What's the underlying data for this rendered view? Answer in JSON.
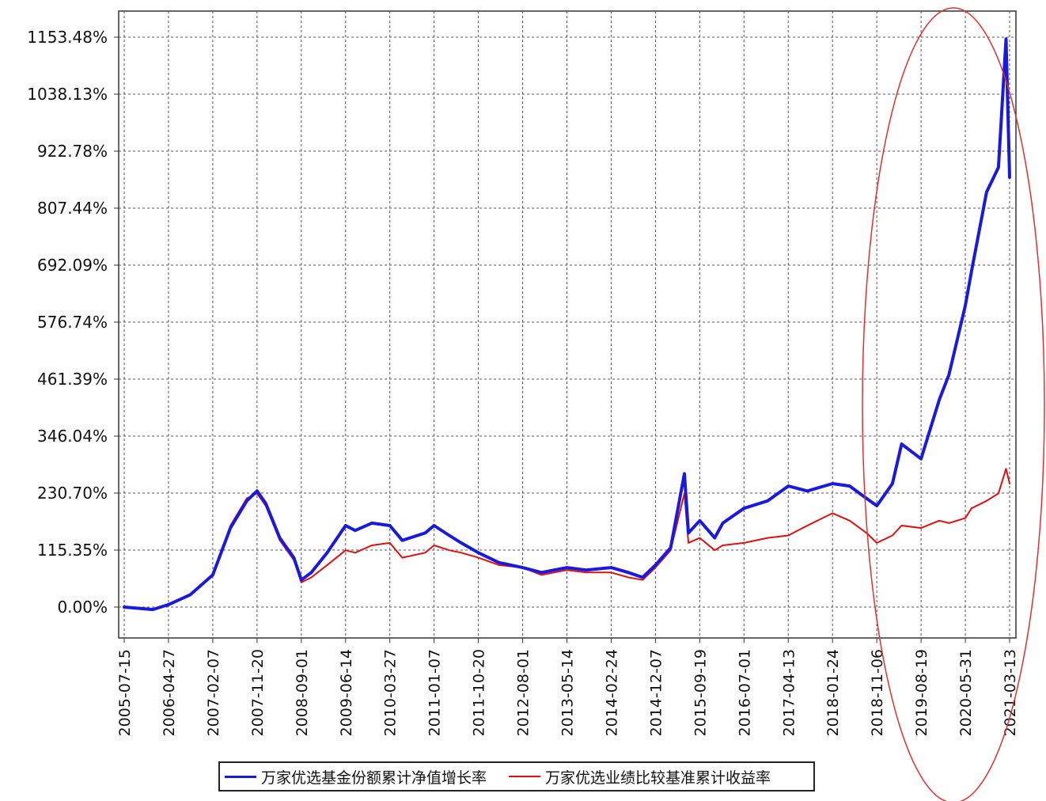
{
  "chart_data": {
    "type": "line",
    "title": "",
    "xlabel": "",
    "ylabel": "",
    "y_unit": "%",
    "ylim": [
      -60,
      1190
    ],
    "y_ticks": [
      "0.00%",
      "115.35%",
      "230.70%",
      "346.04%",
      "461.39%",
      "576.74%",
      "692.09%",
      "807.44%",
      "922.78%",
      "1038.13%",
      "1153.48%"
    ],
    "y_tick_values": [
      0,
      115.35,
      230.7,
      346.04,
      461.39,
      576.74,
      692.09,
      807.44,
      922.78,
      1038.13,
      1153.48
    ],
    "x_ticks": [
      "2005-07-15",
      "2006-04-27",
      "2007-02-07",
      "2007-11-20",
      "2008-09-01",
      "2009-06-14",
      "2010-03-27",
      "2011-01-07",
      "2011-10-20",
      "2012-08-01",
      "2013-05-14",
      "2014-02-24",
      "2014-12-07",
      "2015-09-19",
      "2016-07-01",
      "2017-04-13",
      "2018-01-24",
      "2018-11-06",
      "2019-08-19",
      "2020-05-31",
      "2021-03-13"
    ],
    "grid": true,
    "legend_position": "bottom",
    "highlight": {
      "shape": "ellipse",
      "color": "#e03030"
    },
    "series": [
      {
        "name": "万家优选基金份额累计净值增长率",
        "color": "#1a1adc",
        "x": [
          "2005-07-15",
          "2006-01-15",
          "2006-04-27",
          "2006-09-15",
          "2007-02-07",
          "2007-06-01",
          "2007-09-15",
          "2007-11-20",
          "2008-01-15",
          "2008-04-15",
          "2008-07-15",
          "2008-09-01",
          "2008-11-05",
          "2009-02-15",
          "2009-06-14",
          "2009-08-15",
          "2009-12-01",
          "2010-03-27",
          "2010-06-15",
          "2010-11-10",
          "2011-01-07",
          "2011-04-15",
          "2011-07-01",
          "2011-10-20",
          "2012-03-01",
          "2012-08-01",
          "2012-12-01",
          "2013-05-14",
          "2013-09-15",
          "2014-02-24",
          "2014-06-15",
          "2014-09-15",
          "2014-12-07",
          "2015-03-15",
          "2015-06-12",
          "2015-07-08",
          "2015-09-19",
          "2015-12-25",
          "2016-02-15",
          "2016-07-01",
          "2016-12-01",
          "2017-04-13",
          "2017-08-15",
          "2018-01-24",
          "2018-05-15",
          "2018-09-01",
          "2018-11-06",
          "2019-02-15",
          "2019-04-15",
          "2019-08-19",
          "2019-12-15",
          "2020-02-15",
          "2020-05-31",
          "2020-07-10",
          "2020-10-15",
          "2020-12-31",
          "2021-02-18",
          "2021-03-13"
        ],
        "y": [
          0,
          -5,
          5,
          25,
          65,
          160,
          215,
          235,
          210,
          140,
          100,
          55,
          70,
          110,
          165,
          155,
          170,
          165,
          135,
          150,
          165,
          145,
          130,
          110,
          90,
          80,
          70,
          80,
          75,
          80,
          70,
          60,
          85,
          120,
          270,
          150,
          175,
          140,
          170,
          200,
          215,
          245,
          235,
          250,
          245,
          220,
          205,
          250,
          330,
          300,
          420,
          470,
          610,
          680,
          840,
          890,
          1150,
          870
        ]
      },
      {
        "name": "万家优选业绩比较基准累计收益率",
        "color": "#e01010",
        "x": [
          "2005-07-15",
          "2006-01-15",
          "2006-04-27",
          "2006-09-15",
          "2007-02-07",
          "2007-06-01",
          "2007-09-15",
          "2007-11-20",
          "2008-01-15",
          "2008-04-15",
          "2008-07-15",
          "2008-09-01",
          "2008-11-05",
          "2009-02-15",
          "2009-06-14",
          "2009-08-15",
          "2009-12-01",
          "2010-03-27",
          "2010-06-15",
          "2010-11-10",
          "2011-01-07",
          "2011-04-15",
          "2011-07-01",
          "2011-10-20",
          "2012-03-01",
          "2012-08-01",
          "2012-12-01",
          "2013-05-14",
          "2013-09-15",
          "2014-02-24",
          "2014-06-15",
          "2014-09-15",
          "2014-12-07",
          "2015-03-15",
          "2015-06-12",
          "2015-07-08",
          "2015-09-19",
          "2015-12-25",
          "2016-02-15",
          "2016-07-01",
          "2016-12-01",
          "2017-04-13",
          "2017-08-15",
          "2018-01-24",
          "2018-05-15",
          "2018-09-01",
          "2018-11-06",
          "2019-02-15",
          "2019-04-15",
          "2019-08-19",
          "2019-12-15",
          "2020-02-15",
          "2020-05-31",
          "2020-07-10",
          "2020-10-15",
          "2020-12-31",
          "2021-02-18",
          "2021-03-13"
        ],
        "y": [
          0,
          -5,
          5,
          25,
          65,
          165,
          220,
          230,
          205,
          135,
          95,
          50,
          60,
          85,
          115,
          110,
          125,
          130,
          100,
          110,
          125,
          115,
          110,
          100,
          85,
          80,
          65,
          75,
          70,
          70,
          60,
          55,
          80,
          115,
          230,
          130,
          140,
          115,
          125,
          130,
          140,
          145,
          165,
          190,
          175,
          150,
          130,
          145,
          165,
          160,
          175,
          170,
          180,
          200,
          215,
          230,
          280,
          250
        ]
      }
    ]
  }
}
